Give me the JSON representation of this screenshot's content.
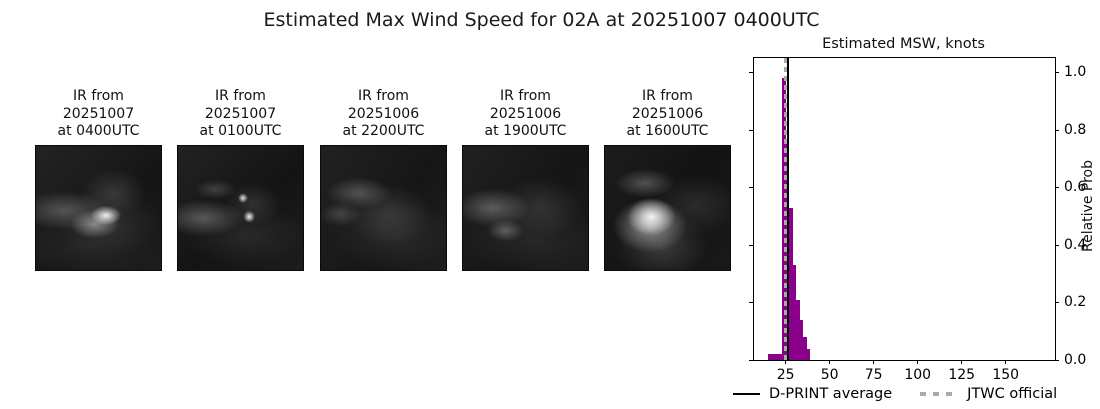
{
  "title": "Estimated Max Wind Speed for 02A at 20251007 0400UTC",
  "ir_panels": [
    {
      "label": "IR from\n20251007\nat 0400UTC"
    },
    {
      "label": "IR from\n20251007\nat 0100UTC"
    },
    {
      "label": "IR from\n20251006\nat 2200UTC"
    },
    {
      "label": "IR from\n20251006\nat 1900UTC"
    },
    {
      "label": "IR from\n20251006\nat 1600UTC"
    }
  ],
  "chart_data": {
    "type": "bar",
    "title": "Estimated MSW, knots",
    "ylabel": "Relative Prob",
    "xlabel": "",
    "xlim": [
      7,
      178
    ],
    "ylim": [
      0,
      1.05
    ],
    "x_ticks": [
      25,
      50,
      75,
      100,
      125,
      150
    ],
    "y_ticks": [
      0.0,
      0.2,
      0.4,
      0.6,
      0.8,
      1.0
    ],
    "grid": false,
    "bar_color": "#8a008a",
    "bins": [
      {
        "from": 15,
        "to": 17,
        "prob": 0.02
      },
      {
        "from": 17,
        "to": 19,
        "prob": 0.02
      },
      {
        "from": 19,
        "to": 21,
        "prob": 0.02
      },
      {
        "from": 21,
        "to": 23,
        "prob": 0.02
      },
      {
        "from": 23,
        "to": 25,
        "prob": 0.98
      },
      {
        "from": 25,
        "to": 27,
        "prob": 0.76
      },
      {
        "from": 27,
        "to": 29,
        "prob": 0.53
      },
      {
        "from": 29,
        "to": 31,
        "prob": 0.33
      },
      {
        "from": 31,
        "to": 33,
        "prob": 0.21
      },
      {
        "from": 33,
        "to": 35,
        "prob": 0.14
      },
      {
        "from": 35,
        "to": 37,
        "prob": 0.08
      },
      {
        "from": 37,
        "to": 39,
        "prob": 0.04
      }
    ],
    "vlines": [
      {
        "name": "D-PRINT average",
        "x": 26.3,
        "style": "solid",
        "color": "#000000",
        "width": 2
      },
      {
        "name": "JTWC official",
        "x": 25.0,
        "style": "dashed",
        "color": "#aaaaaa",
        "width": 3.5
      }
    ],
    "legend": {
      "position": "below",
      "items": [
        {
          "label": "D-PRINT average",
          "style": "solid",
          "color": "#000000"
        },
        {
          "label": "JTWC official",
          "style": "dashed",
          "color": "#aaaaaa"
        }
      ]
    }
  }
}
